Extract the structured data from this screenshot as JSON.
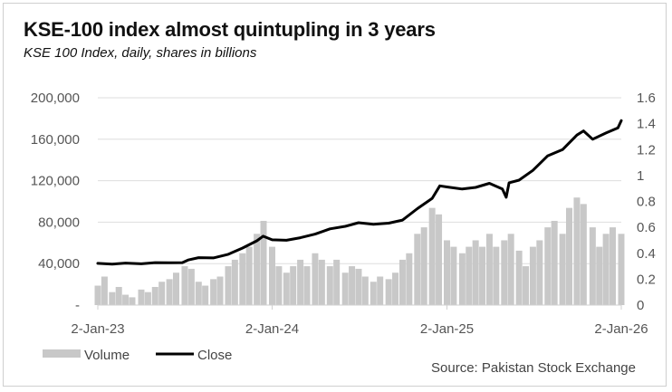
{
  "title": "KSE-100 index almost quintupling in 3 years",
  "subtitle": "KSE 100 Index, daily, shares in billions",
  "source": "Source: Pakistan Stock Exchange",
  "colors": {
    "close": "#000000",
    "volume": "#c8c8c8",
    "grid": "#dddddd",
    "axis": "#d0d0d0"
  },
  "chart_data": {
    "type": "line",
    "title": "KSE-100 index almost quintupling in 3 years",
    "subtitle": "KSE 100 Index, daily, shares in billions",
    "x_ticks": [
      "2-Jan-23",
      "2-Jan-24",
      "2-Jan-25",
      "2-Jan-26"
    ],
    "y_left_ticks": [
      "-",
      "40,000",
      "80,000",
      "120,000",
      "160,000",
      "200,000"
    ],
    "y_left_range": [
      0,
      200000
    ],
    "y_right_ticks": [
      "0",
      "0.2",
      "0.4",
      "0.6",
      "0.8",
      "1",
      "1.2",
      "1.4",
      "1.6"
    ],
    "y_right_range": [
      0,
      1.6
    ],
    "grid": true,
    "legend_position": "bottom-left",
    "series": [
      {
        "name": "Close",
        "axis": "left",
        "points": [
          [
            "2023-01-02",
            40300
          ],
          [
            "2023-02-01",
            39500
          ],
          [
            "2023-03-01",
            40500
          ],
          [
            "2023-04-03",
            39800
          ],
          [
            "2023-05-02",
            41000
          ],
          [
            "2023-06-01",
            40800
          ],
          [
            "2023-06-28",
            41000
          ],
          [
            "2023-07-10",
            43500
          ],
          [
            "2023-08-01",
            45800
          ],
          [
            "2023-09-01",
            45500
          ],
          [
            "2023-10-02",
            49000
          ],
          [
            "2023-11-01",
            55000
          ],
          [
            "2023-12-01",
            62000
          ],
          [
            "2023-12-14",
            66500
          ],
          [
            "2024-01-02",
            63000
          ],
          [
            "2024-02-01",
            62500
          ],
          [
            "2024-03-01",
            65000
          ],
          [
            "2024-04-01",
            68500
          ],
          [
            "2024-05-02",
            73500
          ],
          [
            "2024-06-03",
            76000
          ],
          [
            "2024-07-01",
            79500
          ],
          [
            "2024-08-01",
            78000
          ],
          [
            "2024-09-02",
            79000
          ],
          [
            "2024-10-01",
            82000
          ],
          [
            "2024-11-01",
            93000
          ],
          [
            "2024-12-02",
            103000
          ],
          [
            "2024-12-18",
            115000
          ],
          [
            "2025-01-02",
            114000
          ],
          [
            "2025-02-03",
            112000
          ],
          [
            "2025-03-03",
            113500
          ],
          [
            "2025-04-01",
            117500
          ],
          [
            "2025-04-28",
            112000
          ],
          [
            "2025-05-06",
            104000
          ],
          [
            "2025-05-12",
            118000
          ],
          [
            "2025-06-02",
            120500
          ],
          [
            "2025-07-01",
            130000
          ],
          [
            "2025-08-01",
            144000
          ],
          [
            "2025-09-01",
            150000
          ],
          [
            "2025-10-01",
            164000
          ],
          [
            "2025-10-15",
            168000
          ],
          [
            "2025-11-03",
            160000
          ],
          [
            "2025-12-01",
            166000
          ],
          [
            "2025-12-26",
            171000
          ],
          [
            "2026-01-02",
            178000
          ]
        ]
      },
      {
        "name": "Volume",
        "axis": "right",
        "bar_series": true,
        "points": [
          [
            "2023-01-02",
            0.15
          ],
          [
            "2023-01-16",
            0.22
          ],
          [
            "2023-02-01",
            0.1
          ],
          [
            "2023-02-15",
            0.14
          ],
          [
            "2023-03-01",
            0.08
          ],
          [
            "2023-03-15",
            0.06
          ],
          [
            "2023-04-03",
            0.12
          ],
          [
            "2023-04-17",
            0.1
          ],
          [
            "2023-05-02",
            0.14
          ],
          [
            "2023-05-16",
            0.18
          ],
          [
            "2023-06-01",
            0.2
          ],
          [
            "2023-06-15",
            0.25
          ],
          [
            "2023-07-03",
            0.3
          ],
          [
            "2023-07-17",
            0.28
          ],
          [
            "2023-08-01",
            0.18
          ],
          [
            "2023-08-15",
            0.15
          ],
          [
            "2023-09-01",
            0.2
          ],
          [
            "2023-09-15",
            0.22
          ],
          [
            "2023-10-02",
            0.3
          ],
          [
            "2023-10-16",
            0.35
          ],
          [
            "2023-11-01",
            0.4
          ],
          [
            "2023-11-15",
            0.45
          ],
          [
            "2023-12-01",
            0.55
          ],
          [
            "2023-12-15",
            0.65
          ],
          [
            "2024-01-02",
            0.45
          ],
          [
            "2024-01-16",
            0.3
          ],
          [
            "2024-02-01",
            0.25
          ],
          [
            "2024-02-15",
            0.3
          ],
          [
            "2024-03-01",
            0.35
          ],
          [
            "2024-03-15",
            0.3
          ],
          [
            "2024-04-01",
            0.4
          ],
          [
            "2024-04-15",
            0.35
          ],
          [
            "2024-05-02",
            0.3
          ],
          [
            "2024-05-16",
            0.35
          ],
          [
            "2024-06-03",
            0.25
          ],
          [
            "2024-06-17",
            0.3
          ],
          [
            "2024-07-01",
            0.28
          ],
          [
            "2024-07-15",
            0.22
          ],
          [
            "2024-08-01",
            0.18
          ],
          [
            "2024-08-15",
            0.22
          ],
          [
            "2024-09-02",
            0.2
          ],
          [
            "2024-09-16",
            0.25
          ],
          [
            "2024-10-01",
            0.35
          ],
          [
            "2024-10-15",
            0.4
          ],
          [
            "2024-11-01",
            0.55
          ],
          [
            "2024-11-15",
            0.6
          ],
          [
            "2024-12-02",
            0.75
          ],
          [
            "2024-12-16",
            0.7
          ],
          [
            "2025-01-02",
            0.5
          ],
          [
            "2025-01-16",
            0.45
          ],
          [
            "2025-02-03",
            0.4
          ],
          [
            "2025-02-17",
            0.45
          ],
          [
            "2025-03-03",
            0.5
          ],
          [
            "2025-03-17",
            0.45
          ],
          [
            "2025-04-01",
            0.55
          ],
          [
            "2025-04-15",
            0.45
          ],
          [
            "2025-05-02",
            0.5
          ],
          [
            "2025-05-16",
            0.55
          ],
          [
            "2025-06-02",
            0.42
          ],
          [
            "2025-06-16",
            0.3
          ],
          [
            "2025-07-01",
            0.45
          ],
          [
            "2025-07-15",
            0.5
          ],
          [
            "2025-08-01",
            0.6
          ],
          [
            "2025-08-15",
            0.65
          ],
          [
            "2025-09-01",
            0.55
          ],
          [
            "2025-09-15",
            0.75
          ],
          [
            "2025-10-01",
            0.83
          ],
          [
            "2025-10-15",
            0.78
          ],
          [
            "2025-11-03",
            0.6
          ],
          [
            "2025-11-17",
            0.45
          ],
          [
            "2025-12-01",
            0.55
          ],
          [
            "2025-12-15",
            0.6
          ],
          [
            "2026-01-02",
            0.55
          ]
        ]
      }
    ]
  }
}
